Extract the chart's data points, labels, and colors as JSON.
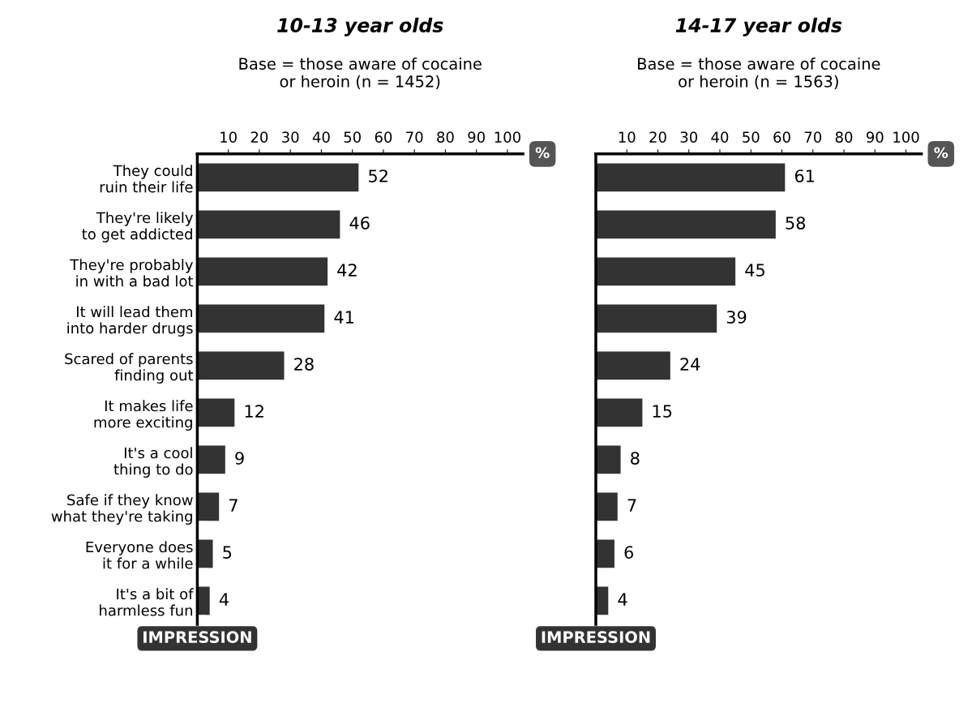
{
  "chart_data": [
    {
      "type": "bar",
      "orientation": "horizontal",
      "title": "10-13 year olds",
      "subtitle": "Base = those aware of cocaine\nor heroin (n = 1452)",
      "xlabel": "%",
      "ylabel": "IMPRESSION",
      "categories": [
        "They could\nruin their life",
        "They're likely\nto get addicted",
        "They're probably\nin with a bad lot",
        "It will lead them\ninto harder drugs",
        "Scared of parents\nfinding out",
        "It makes life\nmore exciting",
        "It's a cool\nthing to do",
        "Safe if they know\nwhat they're taking",
        "Everyone does\nit for a while",
        "It's a bit of\nharmless fun"
      ],
      "values": [
        52,
        46,
        42,
        41,
        28,
        12,
        9,
        7,
        5,
        4
      ],
      "color": "#333333",
      "xlim": [
        0,
        105
      ],
      "xticks": [
        10,
        20,
        30,
        40,
        50,
        60,
        70,
        80,
        90,
        100
      ],
      "data_labels": true,
      "grid": false,
      "legend": false
    },
    {
      "type": "bar",
      "orientation": "horizontal",
      "title": "14-17 year olds",
      "subtitle": "Base = those aware of cocaine\nor heroin (n = 1563)",
      "xlabel": "%",
      "ylabel": "IMPRESSION",
      "categories": [
        null,
        null,
        null,
        null,
        null,
        null,
        null,
        null,
        null,
        null
      ],
      "values": [
        61,
        58,
        45,
        39,
        24,
        15,
        8,
        7,
        6,
        4
      ],
      "color": "#333333",
      "xlim": [
        0,
        105
      ],
      "xticks": [
        10,
        20,
        30,
        40,
        50,
        60,
        70,
        80,
        90,
        100
      ],
      "data_labels": true,
      "grid": false,
      "legend": false
    }
  ]
}
